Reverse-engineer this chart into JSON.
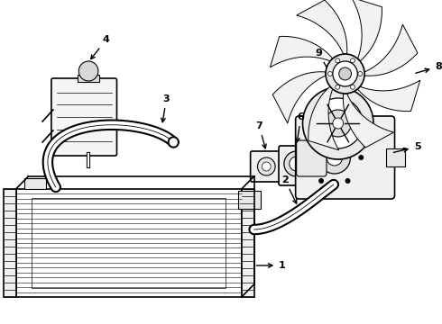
{
  "background_color": "#ffffff",
  "line_color": "#000000",
  "line_width": 1.2
}
